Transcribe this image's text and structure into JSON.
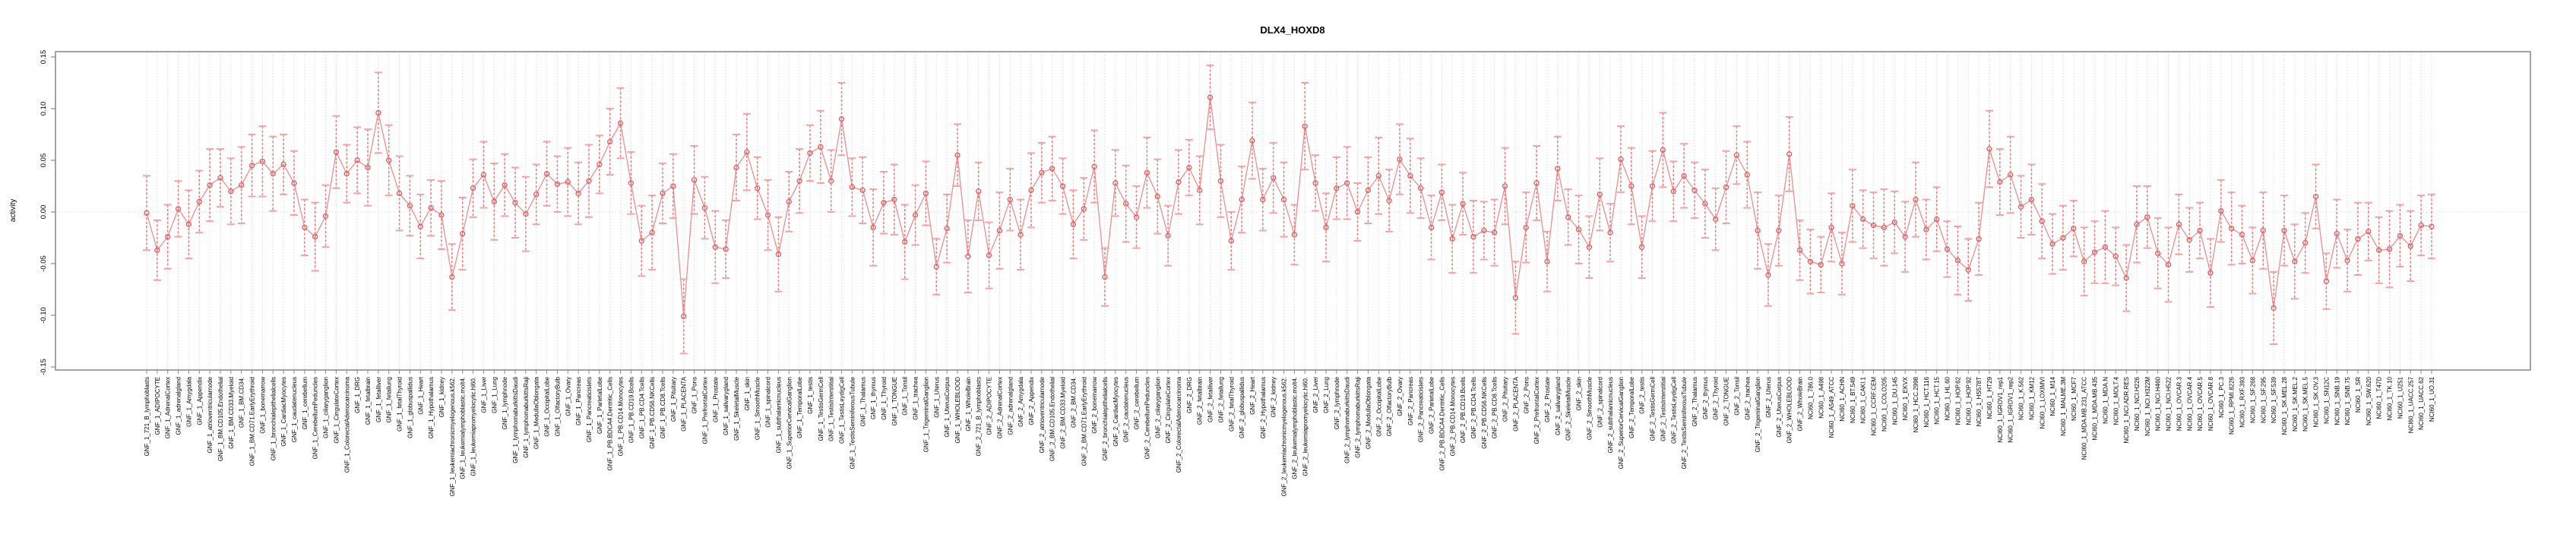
{
  "title": "DLX4_HOXD8",
  "colors": {
    "marker": "#e25c5c",
    "errorbar_line": "#ee7777",
    "errorbar_cap": "#f4a2a2",
    "connector": "#f08d8d",
    "gridline": "#dcdcdc",
    "axis_box": "#8c8c8c",
    "background": "#ffffff"
  },
  "chart_data": {
    "type": "scatter",
    "subtype": "errorbar-series",
    "title": "DLX4_HOXD8",
    "xlabel": "",
    "ylabel": "activity",
    "ylim": [
      -0.15,
      0.15
    ],
    "yticks": [
      -0.15,
      -0.1,
      -0.05,
      0.0,
      0.05,
      0.1,
      0.15
    ],
    "ytick_labels": [
      "-0.15",
      "-0.10",
      "-0.05",
      "0.00",
      "0.05",
      "0.10",
      "0.15"
    ],
    "grid": "vertical dotted gridline per category plus dotted zero line",
    "legend": "none",
    "categories": [
      "GNF_1_721_B_lymphoblasts",
      "GNF_1_ADIPOCYTE",
      "GNF_1_AdrenalCortex",
      "GNF_1_adrenalgland",
      "GNF_1_Amygdala",
      "GNF_1_Appendix",
      "GNF_1_atrioventricularnode",
      "GNF_1_BM.CD105.Endothelial",
      "GNF_1_BM.CD33.Myeloid",
      "GNF_1_BM.CD34.",
      "GNF_1_BM.CD71.EarlyErythroid",
      "GNF_1_bonemarrow",
      "GNF_1_bronchialepithelialcells",
      "GNF_1_CardiacMyocytes",
      "GNF_1_caudatenucleus",
      "GNF_1_cerebellum",
      "GNF_1_CerebellumPeduncles",
      "GNF_1_ciliaryganglion",
      "GNF_1_CingulateCortex",
      "GNF_1_ColorectalAdenocarcinoma",
      "GNF_1_DRG",
      "GNF_1_fetalbrain",
      "GNF_1_fetalliver",
      "GNF_1_fetallung",
      "GNF_1_fetalThyroid",
      "GNF_1_globuspallidus",
      "GNF_1_Heart",
      "GNF_1_Hypothalamus",
      "GNF_1_kidney",
      "GNF_1_leukemiachronicmyelogenous.k562.",
      "GNF_1_leukemialymphoblastic.molt4.",
      "GNF_1_leukemiapromyelocytic.hl60.",
      "GNF_1_Liver",
      "GNF_1_Lung",
      "GNF_1_lymphnode",
      "GNF_1_lymphomaburkittsDaudi",
      "GNF_1_lymphomaburkittsRaji",
      "GNF_1_MedullaOblongata",
      "GNF_1_OccipitalLobe",
      "GNF_1_OlfactoryBulb",
      "GNF_1_Ovary",
      "GNF_1_Pancreas",
      "GNF_1_Pancreaticislets",
      "GNF_1_ParietalLobe",
      "GNF_1_PB.BDCA4.Dentritic_Cells",
      "GNF_1_PB.CD14.Monocytes",
      "GNF_1_PB.CD19.Bcells",
      "GNF_1_PB.CD4.Tcells",
      "GNF_1_PB.CD56.NKCells",
      "GNF_1_PB.CD8.Tcells",
      "GNF_1_Pituitary",
      "GNF_1_PLACENTA",
      "GNF_1_Pons",
      "GNF_1_PrefrontalCortex",
      "GNF_1_Prostate",
      "GNF_1_salivarygland",
      "GNF_1_SkeletalMuscle",
      "GNF_1_skin",
      "GNF_1_SmoothMuscle",
      "GNF_1_spinalcord",
      "GNF_1_subthalamicnucleus",
      "GNF_1_SuperiorCervicalGanglion",
      "GNF_1_TemporalLobe",
      "GNF_1_testis",
      "GNF_1_TestisGermCell",
      "GNF_1_TestisInterstitial",
      "GNF_1_TestisLeydigCell",
      "GNF_1_TestisSeminiferousTubule",
      "GNF_1_Thalamus",
      "GNF_1_thymus",
      "GNF_1_Thyroid",
      "GNF_1_TONGUE",
      "GNF_1_Tonsil",
      "GNF_1_trachea",
      "GNF_1_TrigeminalGanglion",
      "GNF_1_Uterus",
      "GNF_1_UterusCorpus",
      "GNF_1_WHOLEBLOOD",
      "GNF_1_WholeBrain",
      "GNF_2_721_B_lymphoblasts",
      "GNF_2_ADIPOCYTE",
      "GNF_2_AdrenalCortex",
      "GNF_2_adrenalgland",
      "GNF_2_Amygdala",
      "GNF_2_Appendix",
      "GNF_2_atrioventricularnode",
      "GNF_2_BM.CD105.Endothelial",
      "GNF_2_BM.CD33.Myeloid",
      "GNF_2_BM.CD34.",
      "GNF_2_BM.CD71.EarlyErythroid",
      "GNF_2_bonemarrow",
      "GNF_2_bronchialepithelialcells",
      "GNF_2_CardiacMyocytes",
      "GNF_2_caudatenucleus",
      "GNF_2_cerebellum",
      "GNF_2_CerebellumPeduncles",
      "GNF_2_ciliaryganglion",
      "GNF_2_CingulateCortex",
      "GNF_2_ColorectalAdenocarcinoma",
      "GNF_2_DRG",
      "GNF_2_fetalbrain",
      "GNF_2_fetalliver",
      "GNF_2_fetallung",
      "GNF_2_fetalThyroid",
      "GNF_2_globuspallidus",
      "GNF_2_Heart",
      "GNF_2_Hypothalamus",
      "GNF_2_kidney",
      "GNF_2_leukemiachronicmyelogenous.k562.",
      "GNF_2_leukemialymphoblastic.molt4.",
      "GNF_2_leukemiapromyelocytic.hl60.",
      "GNF_2_Liver",
      "GNF_2_Lung",
      "GNF_2_lymphnode",
      "GNF_2_lymphomaburkittsDaudi",
      "GNF_2_lymphomaburkittsRaji",
      "GNF_2_MedullaOblongata",
      "GNF_2_OccipitalLobe",
      "GNF_2_OlfactoryBulb",
      "GNF_2_Ovary",
      "GNF_2_Pancreas",
      "GNF_2_Pancreaticislets",
      "GNF_2_ParietalLobe",
      "GNF_2_PB.BDCA4.Dentritic_Cells",
      "GNF_2_PB.CD14.Monocytes",
      "GNF_2_PB.CD19.Bcells",
      "GNF_2_PB.CD4.Tcells",
      "GNF_2_PB.CD56.NKCells",
      "GNF_2_PB.CD8.Tcells",
      "GNF_2_Pituitary",
      "GNF_2_PLACENTA",
      "GNF_2_Pons",
      "GNF_2_PrefrontalCortex",
      "GNF_2_Prostate",
      "GNF_2_salivarygland",
      "GNF_2_SkeletalMuscle",
      "GNF_2_skin",
      "GNF_2_SmoothMuscle",
      "GNF_2_spinalcord",
      "GNF_2_subthalamicnucleus",
      "GNF_2_SuperiorCervicalGanglion",
      "GNF_2_TemporalLobe",
      "GNF_2_testis",
      "GNF_2_TestisGermCell",
      "GNF_2_TestisInterstitial",
      "GNF_2_TestisLeydigCell",
      "GNF_2_TestisSeminiferousTubule",
      "GNF_2_Thalamus",
      "GNF_2_thymus",
      "GNF_2_Thyroid",
      "GNF_2_TONGUE",
      "GNF_2_Tonsil",
      "GNF_2_trachea",
      "GNF_2_TrigeminalGanglion",
      "GNF_2_Uterus",
      "GNF_2_UterusCorpus",
      "GNF_2_WHOLEBLOOD",
      "GNF_2_WholeBrain",
      "NCI60_1_786.0",
      "NCI60_1_A498",
      "NCI60_1_A549_ATCC",
      "NCI60_1_ACHN",
      "NCI60_1_BT.549",
      "NCI60_1_CAKI.1",
      "NCI60_1_CCRF.CEM",
      "NCI60_1_COLO205",
      "NCI60_1_DU.145",
      "NCI60_1_EKVX",
      "NCI60_1_HCC.2998",
      "NCI60_1_HCT.116",
      "NCI60_1_HCT.15",
      "NCI60_1_HL.60",
      "NCI60_1_HOP.62",
      "NCI60_1_HOP.92",
      "NCI60_1_HS578T",
      "NCI60_1_HT29",
      "NCI60_1_IGROV1_rep1",
      "NCI60_1_IGROV1_rep2",
      "NCI60_1_K.562",
      "NCI60_1_KM12",
      "NCI60_1_LOXIMVI",
      "NCI60_1_M14",
      "NCI60_1_MALME.3M",
      "NCI60_1_MCF7",
      "NCI60_1_MDA.MB.231_ATCC",
      "NCI60_1_MDA.MB.435",
      "NCI60_1_MDA.N",
      "NCI60_1_MOLT.4",
      "NCI60_1_NCI.ADR.RES",
      "NCI60_1_NCI.H226",
      "NCI60_1_NCI.H322M",
      "NCI60_1_NCI.H460",
      "NCI60_1_NCI.H522",
      "NCI60_1_OVCAR.3",
      "NCI60_1_OVCAR.4",
      "NCI60_1_OVCAR.5",
      "NCI60_1_OVCAR.8",
      "NCI60_1_PC.3",
      "NCI60_1_RPMI.8226",
      "NCI60_1_RXF.393",
      "NCI60_1_SF.268",
      "NCI60_1_SF.295",
      "NCI60_1_SF.539",
      "NCI60_1_SK.MEL.28",
      "NCI60_1_SK.MEL.2",
      "NCI60_1_SK.MEL.5",
      "NCI60_1_SK.OV.3",
      "NCI60_1_SN12C",
      "NCI60_1_SNB.19",
      "NCI60_1_SNB.75",
      "NCI60_1_SR",
      "NCI60_1_SW.620",
      "NCI60_1_T47D",
      "NCI60_1_TK.10",
      "NCI60_1_U251",
      "NCI60_1_UACC.257",
      "NCI60_1_UACC.62",
      "NCI60_1_UO.31"
    ],
    "values": [
      -0.001,
      -0.037,
      -0.024,
      0.003,
      -0.012,
      0.01,
      0.026,
      0.033,
      0.02,
      0.026,
      0.045,
      0.049,
      0.037,
      0.046,
      0.028,
      -0.015,
      -0.024,
      -0.004,
      0.058,
      0.037,
      0.05,
      0.043,
      0.096,
      0.05,
      0.018,
      0.006,
      -0.014,
      0.004,
      -0.003,
      -0.063,
      -0.021,
      0.023,
      0.036,
      0.01,
      0.026,
      0.009,
      -0.002,
      0.017,
      0.037,
      0.027,
      0.029,
      0.018,
      0.03,
      0.046,
      0.068,
      0.086,
      0.028,
      -0.028,
      -0.02,
      0.018,
      0.025,
      -0.101,
      0.031,
      0.004,
      -0.034,
      -0.036,
      0.043,
      0.058,
      0.023,
      -0.003,
      -0.041,
      0.01,
      0.03,
      0.057,
      0.063,
      0.03,
      0.09,
      0.024,
      0.021,
      -0.015,
      0.009,
      0.012,
      -0.029,
      -0.003,
      0.018,
      -0.053,
      -0.016,
      0.055,
      -0.043,
      0.02,
      -0.042,
      -0.018,
      0.012,
      -0.022,
      0.021,
      0.038,
      0.042,
      0.025,
      -0.012,
      0.003,
      0.044,
      -0.063,
      0.028,
      0.008,
      -0.005,
      0.038,
      0.015,
      -0.023,
      0.029,
      0.043,
      0.021,
      0.111,
      0.03,
      -0.028,
      0.012,
      0.069,
      0.012,
      0.033,
      0.012,
      -0.022,
      0.083,
      0.028,
      -0.015,
      0.023,
      0.028,
      0.0,
      0.021,
      0.035,
      0.011,
      0.051,
      0.035,
      0.023,
      -0.015,
      0.019,
      -0.026,
      0.008,
      -0.024,
      -0.018,
      -0.02,
      0.025,
      -0.083,
      -0.015,
      0.028,
      -0.048,
      0.042,
      -0.005,
      -0.017,
      -0.034,
      0.017,
      -0.02,
      0.051,
      0.025,
      -0.034,
      0.025,
      0.06,
      0.02,
      0.035,
      0.021,
      0.008,
      -0.007,
      0.024,
      0.055,
      0.036,
      -0.018,
      -0.061,
      -0.018,
      0.056,
      -0.037,
      -0.048,
      -0.051,
      -0.015,
      -0.05,
      0.006,
      -0.007,
      -0.013,
      -0.015,
      -0.01,
      -0.024,
      0.012,
      -0.017,
      -0.007,
      -0.036,
      -0.047,
      -0.056,
      -0.026,
      0.061,
      0.029,
      0.036,
      0.005,
      0.012,
      -0.009,
      -0.031,
      -0.025,
      -0.016,
      -0.048,
      -0.039,
      -0.034,
      -0.043,
      -0.064,
      -0.012,
      -0.005,
      -0.04,
      -0.051,
      -0.012,
      -0.027,
      -0.018,
      -0.059,
      0.001,
      -0.016,
      -0.022,
      -0.047,
      -0.018,
      -0.093,
      -0.018,
      -0.048,
      -0.03,
      0.015,
      -0.067,
      -0.021,
      -0.047,
      -0.026,
      -0.019,
      -0.037,
      -0.036,
      -0.023,
      -0.033,
      -0.013,
      -0.014
    ],
    "errors": [
      0.036,
      0.029,
      0.031,
      0.027,
      0.033,
      0.03,
      0.035,
      0.028,
      0.032,
      0.037,
      0.03,
      0.034,
      0.036,
      0.029,
      0.031,
      0.027,
      0.033,
      0.03,
      0.035,
      0.028,
      0.032,
      0.037,
      0.039,
      0.034,
      0.036,
      0.029,
      0.031,
      0.027,
      0.033,
      0.032,
      0.035,
      0.028,
      0.032,
      0.037,
      0.03,
      0.034,
      0.036,
      0.029,
      0.031,
      0.027,
      0.033,
      0.03,
      0.035,
      0.028,
      0.032,
      0.034,
      0.03,
      0.034,
      0.036,
      0.029,
      0.031,
      0.036,
      0.033,
      0.03,
      0.035,
      0.028,
      0.032,
      0.037,
      0.03,
      0.034,
      0.036,
      0.029,
      0.031,
      0.027,
      0.035,
      0.03,
      0.035,
      0.028,
      0.032,
      0.037,
      0.03,
      0.034,
      0.036,
      0.029,
      0.031,
      0.027,
      0.033,
      0.03,
      0.035,
      0.028,
      0.032,
      0.037,
      0.03,
      0.034,
      0.036,
      0.029,
      0.031,
      0.027,
      0.033,
      0.03,
      0.035,
      0.028,
      0.032,
      0.037,
      0.03,
      0.034,
      0.036,
      0.029,
      0.031,
      0.027,
      0.033,
      0.031,
      0.035,
      0.028,
      0.032,
      0.037,
      0.03,
      0.034,
      0.036,
      0.029,
      0.042,
      0.027,
      0.033,
      0.03,
      0.035,
      0.028,
      0.032,
      0.037,
      0.03,
      0.034,
      0.036,
      0.029,
      0.031,
      0.027,
      0.033,
      0.03,
      0.035,
      0.028,
      0.032,
      0.037,
      0.035,
      0.034,
      0.036,
      0.029,
      0.031,
      0.027,
      0.033,
      0.03,
      0.035,
      0.028,
      0.032,
      0.037,
      0.03,
      0.034,
      0.036,
      0.029,
      0.031,
      0.027,
      0.033,
      0.03,
      0.035,
      0.028,
      0.032,
      0.037,
      0.03,
      0.034,
      0.036,
      0.029,
      0.031,
      0.027,
      0.033,
      0.03,
      0.035,
      0.028,
      0.032,
      0.037,
      0.03,
      0.034,
      0.036,
      0.029,
      0.031,
      0.027,
      0.033,
      0.03,
      0.035,
      0.037,
      0.032,
      0.037,
      0.03,
      0.034,
      0.036,
      0.029,
      0.031,
      0.027,
      0.033,
      0.03,
      0.035,
      0.028,
      0.032,
      0.037,
      0.03,
      0.034,
      0.036,
      0.029,
      0.031,
      0.027,
      0.033,
      0.03,
      0.035,
      0.028,
      0.032,
      0.037,
      0.035,
      0.034,
      0.036,
      0.029,
      0.031,
      0.027,
      0.033,
      0.03,
      0.035,
      0.028,
      0.032,
      0.037,
      0.03,
      0.034,
      0.029,
      0.031
    ]
  }
}
